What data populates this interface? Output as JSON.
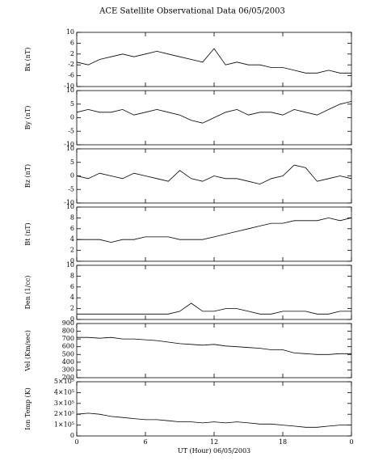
{
  "chart_data": [
    {
      "type": "line",
      "title": "ACE Satellite Observational Data   06/05/2003",
      "ylabel": "Bx (nT)",
      "x": [
        0,
        1,
        2,
        3,
        4,
        5,
        6,
        7,
        8,
        9,
        10,
        11,
        12,
        13,
        14,
        15,
        16,
        17,
        18,
        19,
        20,
        21,
        22,
        23,
        24
      ],
      "values": [
        -1,
        -2,
        0,
        1,
        2,
        1,
        2,
        3,
        2,
        1,
        0,
        -1,
        4,
        -2,
        -1,
        -2,
        -2,
        -3,
        -3,
        -4,
        -5,
        -5,
        -4,
        -5,
        -5
      ],
      "xlim": [
        0,
        24
      ],
      "ylim": [
        -10,
        10
      ],
      "yticks": [
        -10,
        -6,
        -2,
        2,
        6,
        10
      ],
      "color": "#000000"
    },
    {
      "type": "line",
      "ylabel": "By (nT)",
      "x": [
        0,
        1,
        2,
        3,
        4,
        5,
        6,
        7,
        8,
        9,
        10,
        11,
        12,
        13,
        14,
        15,
        16,
        17,
        18,
        19,
        20,
        21,
        22,
        23,
        24
      ],
      "values": [
        2,
        3,
        2,
        2,
        3,
        1,
        2,
        3,
        2,
        1,
        -1,
        -2,
        0,
        2,
        3,
        1,
        2,
        2,
        1,
        3,
        2,
        1,
        3,
        5,
        6
      ],
      "xlim": [
        0,
        24
      ],
      "ylim": [
        -10,
        10
      ],
      "yticks": [
        -10,
        -5,
        0,
        5,
        10
      ],
      "color": "#000000"
    },
    {
      "type": "line",
      "ylabel": "Bz (nT)",
      "x": [
        0,
        1,
        2,
        3,
        4,
        5,
        6,
        7,
        8,
        9,
        10,
        11,
        12,
        13,
        14,
        15,
        16,
        17,
        18,
        19,
        20,
        21,
        22,
        23,
        24
      ],
      "values": [
        0,
        -1,
        1,
        0,
        -1,
        1,
        0,
        -1,
        -2,
        2,
        -1,
        -2,
        0,
        -1,
        -1,
        -2,
        -3,
        -1,
        0,
        4,
        3,
        -2,
        -1,
        0,
        -1
      ],
      "xlim": [
        0,
        24
      ],
      "ylim": [
        -10,
        10
      ],
      "yticks": [
        -10,
        -5,
        0,
        5,
        10
      ],
      "color": "#000000"
    },
    {
      "type": "line",
      "ylabel": "Bt (nT)",
      "x": [
        0,
        1,
        2,
        3,
        4,
        5,
        6,
        7,
        8,
        9,
        10,
        11,
        12,
        13,
        14,
        15,
        16,
        17,
        18,
        19,
        20,
        21,
        22,
        23,
        24
      ],
      "values": [
        4,
        4,
        4,
        3.5,
        4,
        4,
        4.5,
        4.5,
        4.5,
        4,
        4,
        4,
        4.5,
        5,
        5.5,
        6,
        6.5,
        7,
        7,
        7.5,
        7.5,
        7.5,
        8,
        7.5,
        8
      ],
      "xlim": [
        0,
        24
      ],
      "ylim": [
        0,
        10
      ],
      "yticks": [
        0,
        2,
        4,
        6,
        8,
        10
      ],
      "color": "#000000"
    },
    {
      "type": "line",
      "ylabel": "Den (1/cc)",
      "x": [
        0,
        1,
        2,
        3,
        4,
        5,
        6,
        7,
        8,
        9,
        10,
        11,
        12,
        13,
        14,
        15,
        16,
        17,
        18,
        19,
        20,
        21,
        22,
        23,
        24
      ],
      "values": [
        1,
        1,
        1,
        1,
        1,
        1,
        1,
        1,
        1,
        1.5,
        3,
        1.5,
        1.5,
        2,
        2,
        1.5,
        1,
        1,
        1.5,
        1.5,
        1.5,
        1,
        1,
        1.5,
        1.5
      ],
      "xlim": [
        0,
        24
      ],
      "ylim": [
        0,
        10
      ],
      "yticks": [
        0,
        2,
        4,
        6,
        8,
        10
      ],
      "color": "#000000"
    },
    {
      "type": "line",
      "ylabel": "Vel (Km/sec)",
      "x": [
        0,
        1,
        2,
        3,
        4,
        5,
        6,
        7,
        8,
        9,
        10,
        11,
        12,
        13,
        14,
        15,
        16,
        17,
        18,
        19,
        20,
        21,
        22,
        23,
        24
      ],
      "values": [
        720,
        720,
        710,
        720,
        700,
        700,
        690,
        680,
        660,
        640,
        630,
        620,
        630,
        610,
        600,
        590,
        580,
        560,
        560,
        520,
        510,
        500,
        500,
        510,
        510
      ],
      "xlim": [
        0,
        24
      ],
      "ylim": [
        200,
        900
      ],
      "yticks": [
        200,
        300,
        400,
        500,
        600,
        700,
        800,
        900
      ],
      "color": "#000000"
    },
    {
      "type": "line",
      "ylabel": "Ion Temp (K)",
      "xlabel": "UT (Hour)   06/05/2003",
      "x": [
        0,
        1,
        2,
        3,
        4,
        5,
        6,
        7,
        8,
        9,
        10,
        11,
        12,
        13,
        14,
        15,
        16,
        17,
        18,
        19,
        20,
        21,
        22,
        23,
        24
      ],
      "values": [
        200000,
        210000,
        200000,
        180000,
        170000,
        160000,
        150000,
        150000,
        140000,
        130000,
        130000,
        120000,
        130000,
        120000,
        130000,
        120000,
        110000,
        110000,
        100000,
        90000,
        80000,
        80000,
        90000,
        100000,
        100000
      ],
      "xlim": [
        0,
        24
      ],
      "ylim": [
        0,
        500000
      ],
      "yticks": [
        0,
        {
          "value": 100000,
          "label": "1×10⁵"
        },
        {
          "value": 200000,
          "label": "2×10⁵"
        },
        {
          "value": 300000,
          "label": "3×10⁵"
        },
        {
          "value": 400000,
          "label": "4×10⁵"
        },
        {
          "value": 500000,
          "label": "5×10⁵"
        }
      ],
      "xticks": [
        0,
        6,
        12,
        18,
        {
          "value": 24,
          "label": "0"
        }
      ],
      "color": "#000000"
    }
  ]
}
